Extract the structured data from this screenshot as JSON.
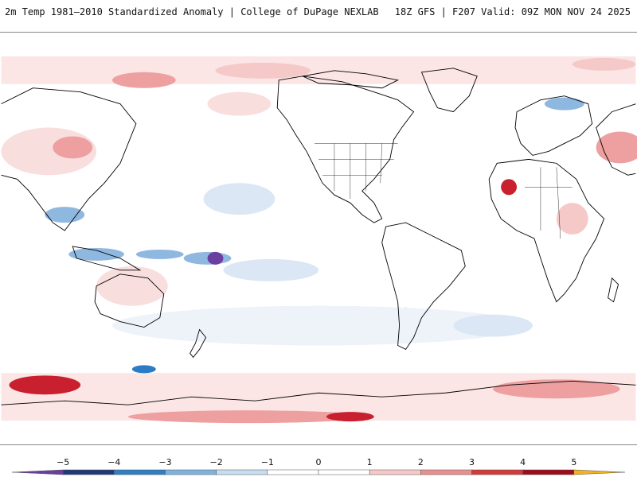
{
  "header": {
    "title_left": "2m Temp 1981–2010 Standardized Anomaly | College of DuPage NEXLAB",
    "title_right": "18Z GFS | F207 Valid: 09Z MON NOV 24 2025"
  },
  "colorbar": {
    "ticks": [
      "−5",
      "−4",
      "−3",
      "−2",
      "−1",
      "0",
      "1",
      "2",
      "3",
      "4",
      "5"
    ],
    "colors": [
      "#6a3fa0",
      "#1f3a7a",
      "#2f7fc1",
      "#7fb3de",
      "#c8ddf0",
      "#ffffff",
      "#ffffff",
      "#f6c9c9",
      "#e89090",
      "#d23a3a",
      "#9b0d1c",
      "#f2b21a"
    ]
  },
  "palette": {
    "land_line": "#000000",
    "warm_light": "#f9dede",
    "warm_mid": "#ee9f9f",
    "warm_strong": "#c8202f",
    "cool_light": "#dbe7f4",
    "cool_mid": "#8fb8e0",
    "cool_strong": "#2b7cc4",
    "cool_extreme": "#6a3fa0"
  }
}
